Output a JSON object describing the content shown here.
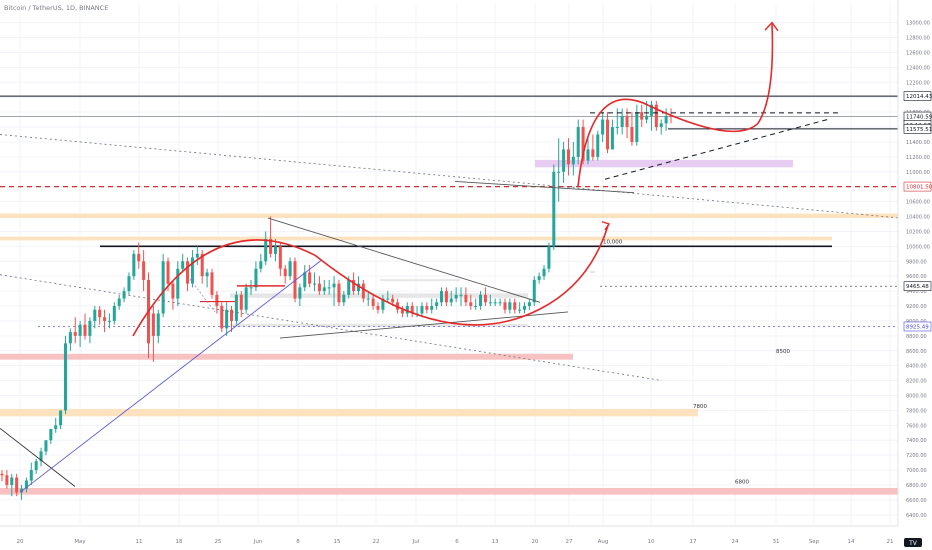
{
  "header": {
    "title": "Bitcoin / TetherUS, 1D, BINANCE"
  },
  "colors": {
    "up": "#26a69a",
    "down": "#ef5350",
    "arc": "#e52828",
    "resistance_dash": "#d32f2f",
    "zone_orange": "#fde2c0",
    "zone_red": "#f9c2c2",
    "zone_purple": "#e8cdf2",
    "zone_gray": "#e6e6e6",
    "trend_blue": "#5b5bd6",
    "axis_text": "#787b86",
    "grid": "#f0f3fa"
  },
  "chart_data": {
    "type": "candlestick",
    "ylim": [
      6250,
      13250
    ],
    "y_ticks": [
      6400,
      6600,
      6800,
      7000,
      7200,
      7400,
      7600,
      7800,
      8000,
      8200,
      8400,
      8600,
      8800,
      9000,
      9200,
      9400,
      9600,
      9800,
      10000,
      10200,
      10400,
      10600,
      10800,
      11000,
      11200,
      11400,
      11600,
      11800,
      12000,
      12200,
      12400,
      12600,
      12800,
      13000
    ],
    "x_ticks": [
      "20",
      "May",
      "11",
      "18",
      "25",
      "Jun",
      "8",
      "15",
      "22",
      "Jul",
      "6",
      "13",
      "20",
      "27",
      "Aug",
      "10",
      "17",
      "24",
      "31",
      "Sep",
      "14",
      "21"
    ],
    "price_labels": [
      {
        "value": 12014.43,
        "text": "12014.43",
        "style": "dark"
      },
      {
        "value": 11740.59,
        "text": "11740.59",
        "style": "dark"
      },
      {
        "value": 11630,
        "text": "12:12:57",
        "style": "dark"
      },
      {
        "value": 11575.51,
        "text": "11575.51",
        "style": "dark"
      },
      {
        "value": 10801.5,
        "text": "10801.50",
        "style": "red"
      },
      {
        "value": 9465.48,
        "text": "9465.48",
        "style": "dark"
      },
      {
        "value": 8925.49,
        "text": "8925.49",
        "style": "blue"
      }
    ],
    "annotations": [
      {
        "text": "10,000",
        "x": "Aug",
        "y": 10040
      },
      {
        "text": "8500",
        "x": "31",
        "y": 8570
      },
      {
        "text": "7800",
        "x": "17",
        "y": 7830
      },
      {
        "text": "6800",
        "x": "24",
        "y": 6820
      }
    ],
    "series": [
      {
        "name": "",
        "open": [
          6950,
          6930,
          6800,
          6900,
          6700,
          6750,
          6860,
          7000,
          7120,
          7250,
          7400,
          7550,
          7600,
          7800,
          8700,
          8850,
          8800,
          8950,
          8800,
          9000,
          9150,
          9050,
          9000,
          9000,
          9200,
          9300,
          9400,
          9600,
          9900,
          9800,
          9550,
          9100,
          8800,
          9100,
          9800,
          9500,
          9300,
          9700,
          9800,
          9500,
          9850,
          9900,
          9600,
          9650,
          9350,
          9200,
          8900,
          9150,
          9000,
          9350,
          9150,
          9450,
          9450,
          9700,
          9800,
          10100,
          9900,
          10000,
          9700,
          9600,
          9800,
          9300,
          9450,
          9650,
          9500,
          9500,
          9400,
          9450,
          9450,
          9500,
          9250,
          9350,
          9550,
          9400,
          9500,
          9300,
          9300,
          9200,
          9150,
          9300,
          9300,
          9250,
          9150,
          9100,
          9200,
          9100,
          9100,
          9200,
          9150,
          9200,
          9250,
          9400,
          9250,
          9300,
          9350,
          9350,
          9250,
          9200,
          9200,
          9350,
          9250,
          9250,
          9250,
          9250,
          9150,
          9250,
          9150,
          9150,
          9200,
          9250,
          9550,
          9600,
          9700,
          10000,
          11000,
          11000,
          11300,
          11100,
          11200,
          11600,
          11150,
          11300,
          11200,
          11500,
          11700,
          11300,
          11600,
          11600,
          11750,
          11600,
          11400,
          11800,
          11700,
          11750,
          11900,
          11600,
          11650,
          11750
        ]
      },
      {
        "name": "",
        "high": [
          7000,
          7000,
          6950,
          6950,
          6800,
          6900,
          7100,
          7150,
          7300,
          7400,
          7550,
          7700,
          7800,
          8800,
          8900,
          9050,
          9000,
          9100,
          9050,
          9200,
          9200,
          9150,
          9100,
          9250,
          9350,
          9450,
          9650,
          9950,
          10050,
          9950,
          9650,
          9200,
          9150,
          9900,
          9850,
          9550,
          9800,
          9900,
          9850,
          9950,
          10000,
          9950,
          9700,
          9700,
          9400,
          9250,
          9250,
          9200,
          9400,
          9400,
          9500,
          9550,
          9800,
          9900,
          10200,
          10400,
          10100,
          10050,
          9750,
          9850,
          9850,
          9500,
          9750,
          9750,
          9650,
          9600,
          9550,
          9550,
          9600,
          9550,
          9400,
          9600,
          9650,
          9600,
          9550,
          9400,
          9350,
          9250,
          9350,
          9400,
          9350,
          9300,
          9200,
          9250,
          9250,
          9200,
          9250,
          9250,
          9300,
          9300,
          9450,
          9450,
          9400,
          9450,
          9450,
          9450,
          9350,
          9300,
          9400,
          9450,
          9350,
          9300,
          9300,
          9300,
          9300,
          9300,
          9250,
          9250,
          9300,
          9600,
          9650,
          9750,
          10050,
          11100,
          11450,
          11400,
          11450,
          11400,
          11700,
          11700,
          11450,
          11500,
          11550,
          11800,
          11800,
          11700,
          11850,
          11850,
          11850,
          11800,
          11900,
          11900,
          11950,
          11950,
          11950,
          11700,
          11850,
          11850
        ]
      },
      {
        "name": "",
        "low": [
          6850,
          6750,
          6650,
          6650,
          6600,
          6700,
          6800,
          6950,
          7050,
          7200,
          7350,
          7500,
          7550,
          7750,
          8600,
          8700,
          8650,
          8750,
          8700,
          8900,
          8950,
          8850,
          8900,
          8950,
          9150,
          9250,
          9350,
          9550,
          9700,
          9400,
          8500,
          8450,
          8700,
          9050,
          9400,
          9150,
          9200,
          9650,
          9400,
          9450,
          9750,
          9500,
          9450,
          9300,
          9100,
          8850,
          8800,
          8850,
          8950,
          9050,
          9100,
          9350,
          9400,
          9650,
          9750,
          9850,
          9800,
          9600,
          9500,
          9550,
          9250,
          9200,
          9400,
          9450,
          9400,
          9350,
          9350,
          9350,
          9200,
          9200,
          9200,
          9300,
          9350,
          9350,
          9250,
          9200,
          9150,
          9100,
          9100,
          9250,
          9200,
          9100,
          9050,
          9050,
          9050,
          9050,
          9050,
          9100,
          9100,
          9150,
          9200,
          9200,
          9200,
          9250,
          9200,
          9200,
          9150,
          9150,
          9150,
          9200,
          9200,
          9200,
          9200,
          9100,
          9100,
          9100,
          9100,
          9100,
          9150,
          9200,
          9500,
          9550,
          9650,
          9950,
          10600,
          10850,
          10950,
          10950,
          11100,
          11100,
          11100,
          11150,
          11150,
          11400,
          11250,
          11300,
          11500,
          11500,
          11450,
          11350,
          11350,
          11600,
          11650,
          11550,
          11550,
          11500,
          11550,
          11650
        ]
      },
      {
        "name": "",
        "close": [
          6930,
          6800,
          6900,
          6700,
          6750,
          6860,
          7000,
          7120,
          7250,
          7400,
          7550,
          7600,
          7800,
          8700,
          8850,
          8800,
          8950,
          8800,
          9000,
          9150,
          9050,
          9000,
          9000,
          9200,
          9300,
          9400,
          9600,
          9900,
          9800,
          9550,
          8700,
          8800,
          9100,
          9800,
          9500,
          9300,
          9700,
          9800,
          9500,
          9850,
          9900,
          9600,
          9650,
          9350,
          9200,
          8900,
          9150,
          9000,
          9350,
          9150,
          9450,
          9450,
          9700,
          9800,
          10100,
          9900,
          10000,
          9700,
          9600,
          9800,
          9300,
          9450,
          9650,
          9500,
          9500,
          9400,
          9450,
          9450,
          9500,
          9250,
          9350,
          9550,
          9400,
          9500,
          9300,
          9300,
          9200,
          9150,
          9300,
          9300,
          9250,
          9150,
          9100,
          9200,
          9100,
          9100,
          9200,
          9150,
          9200,
          9250,
          9400,
          9250,
          9300,
          9350,
          9350,
          9250,
          9200,
          9200,
          9350,
          9250,
          9250,
          9250,
          9250,
          9150,
          9250,
          9150,
          9150,
          9200,
          9250,
          9550,
          9600,
          9700,
          10000,
          11000,
          11000,
          11300,
          11100,
          11200,
          11600,
          11150,
          11300,
          11200,
          11500,
          11700,
          11300,
          11600,
          11600,
          11750,
          11600,
          11400,
          11800,
          11700,
          11750,
          11900,
          11600,
          11650,
          11750,
          11740
        ]
      }
    ]
  }
}
